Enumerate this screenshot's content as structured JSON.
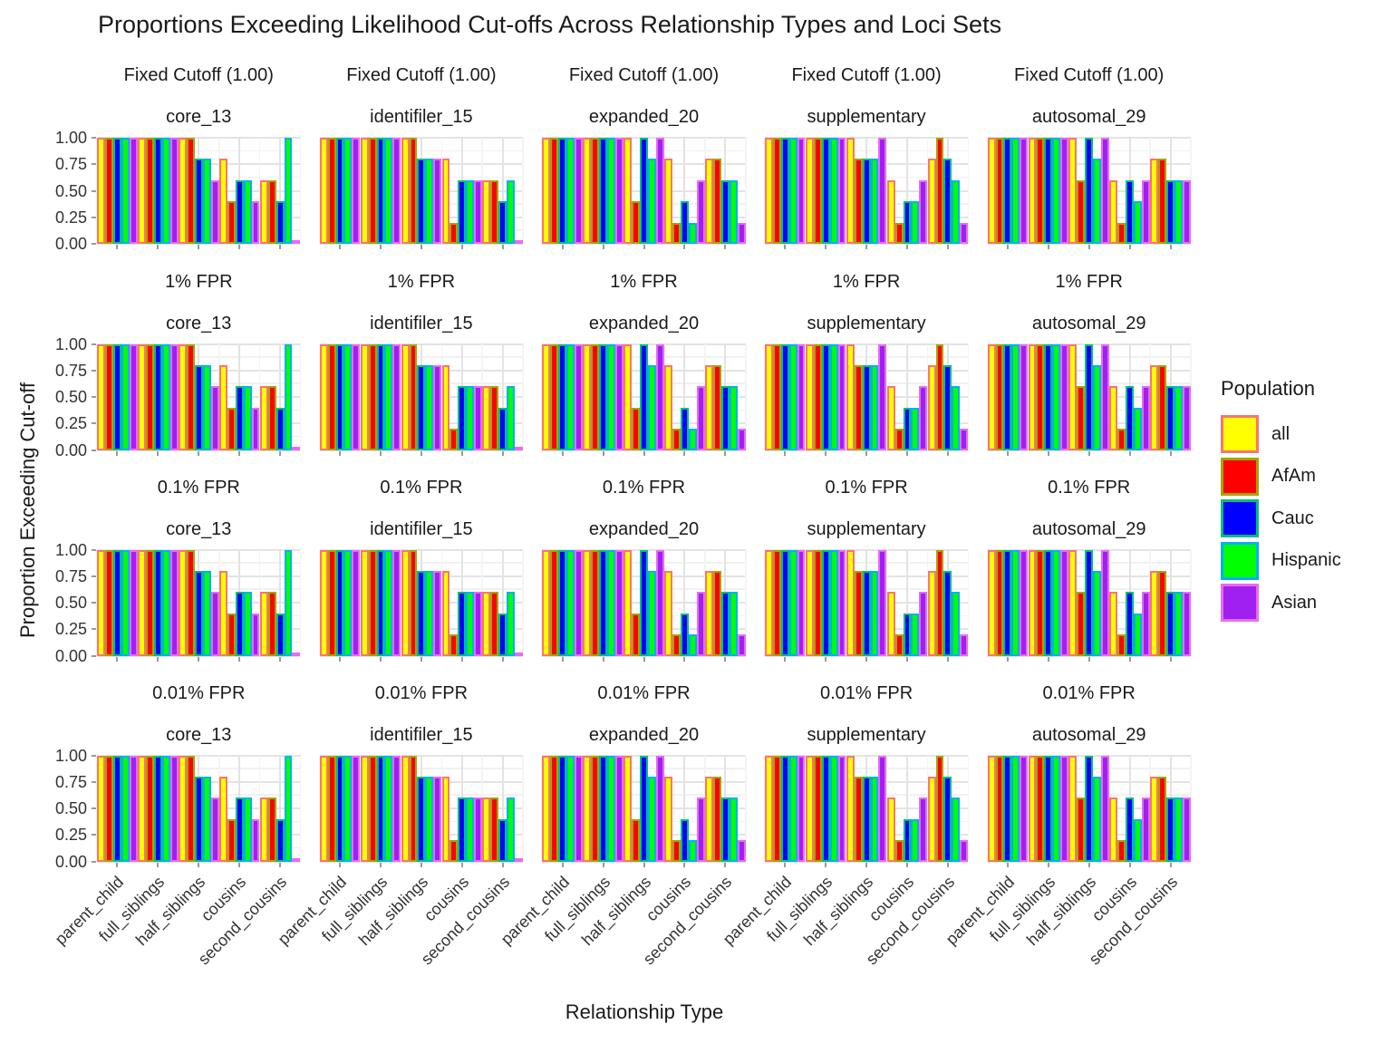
{
  "title": "Proportions Exceeding Likelihood Cut-offs Across Relationship Types and Loci Sets",
  "legend": {
    "title": "Population",
    "entries": [
      "all",
      "AfAm",
      "Cauc",
      "Hispanic",
      "Asian"
    ]
  },
  "colors": {
    "fills": {
      "all": "#FFFF00",
      "AfAm": "#FF0000",
      "Cauc": "#0000FF",
      "Hispanic": "#00FF00",
      "Asian": "#A020F0"
    },
    "outlines": {
      "all": "#F8766D",
      "AfAm": "#A3A500",
      "Cauc": "#00BF7D",
      "Hispanic": "#00B0F6",
      "Asian": "#E76BF3"
    },
    "grid_major": "#e3e3e3",
    "grid_minor": "#f1f1f1"
  },
  "chart_data": {
    "type": "bar",
    "title": "Proportions Exceeding Likelihood Cut-offs Across Relationship Types and Loci Sets",
    "xlabel": "Relationship Type",
    "ylabel": "Proportion Exceeding Cut-off",
    "ylim": [
      0,
      1
    ],
    "ytick_labels": [
      "1.00",
      "0.75",
      "0.50",
      "0.25",
      "0.00"
    ],
    "grid": true,
    "legend_position": "right",
    "categories": [
      "parent_child",
      "full_siblings",
      "half_siblings",
      "cousins",
      "second_cousins"
    ],
    "populations": [
      "all",
      "AfAm",
      "Cauc",
      "Hispanic",
      "Asian"
    ],
    "row_facets": [
      "Fixed Cutoff (1.00)",
      "1% FPR",
      "0.1% FPR",
      "0.01% FPR"
    ],
    "col_facets": [
      "core_13",
      "identifiler_15",
      "expanded_20",
      "supplementary",
      "autosomal_29"
    ],
    "values_note": "proportions per category, per population [all, AfAm, Cauc, Hispanic, Asian]; identical across all four cutoff rows",
    "values": {
      "core_13": [
        [
          1.0,
          1.0,
          1.0,
          1.0,
          1.0
        ],
        [
          1.0,
          1.0,
          1.0,
          1.0,
          1.0
        ],
        [
          1.0,
          1.0,
          0.8,
          0.8,
          0.6
        ],
        [
          0.8,
          0.4,
          0.6,
          0.6,
          0.4
        ],
        [
          0.6,
          0.6,
          0.4,
          1.0,
          0.0
        ]
      ],
      "identifiler_15": [
        [
          1.0,
          1.0,
          1.0,
          1.0,
          1.0
        ],
        [
          1.0,
          1.0,
          1.0,
          1.0,
          1.0
        ],
        [
          1.0,
          1.0,
          0.8,
          0.8,
          0.8
        ],
        [
          0.8,
          0.2,
          0.6,
          0.6,
          0.6
        ],
        [
          0.6,
          0.6,
          0.4,
          0.6,
          0.0
        ]
      ],
      "expanded_20": [
        [
          1.0,
          1.0,
          1.0,
          1.0,
          1.0
        ],
        [
          1.0,
          1.0,
          1.0,
          1.0,
          1.0
        ],
        [
          1.0,
          0.4,
          1.0,
          0.8,
          1.0
        ],
        [
          0.8,
          0.2,
          0.4,
          0.2,
          0.6
        ],
        [
          0.8,
          0.8,
          0.6,
          0.6,
          0.2
        ]
      ],
      "supplementary": [
        [
          1.0,
          1.0,
          1.0,
          1.0,
          1.0
        ],
        [
          1.0,
          1.0,
          1.0,
          1.0,
          1.0
        ],
        [
          1.0,
          0.8,
          0.8,
          0.8,
          1.0
        ],
        [
          0.6,
          0.2,
          0.4,
          0.4,
          0.6
        ],
        [
          0.8,
          1.0,
          0.8,
          0.6,
          0.2
        ]
      ],
      "autosomal_29": [
        [
          1.0,
          1.0,
          1.0,
          1.0,
          1.0
        ],
        [
          1.0,
          1.0,
          1.0,
          1.0,
          1.0
        ],
        [
          1.0,
          0.6,
          1.0,
          0.8,
          1.0
        ],
        [
          0.6,
          0.2,
          0.6,
          0.4,
          0.6
        ],
        [
          0.8,
          0.8,
          0.6,
          0.6,
          0.6
        ]
      ]
    }
  }
}
